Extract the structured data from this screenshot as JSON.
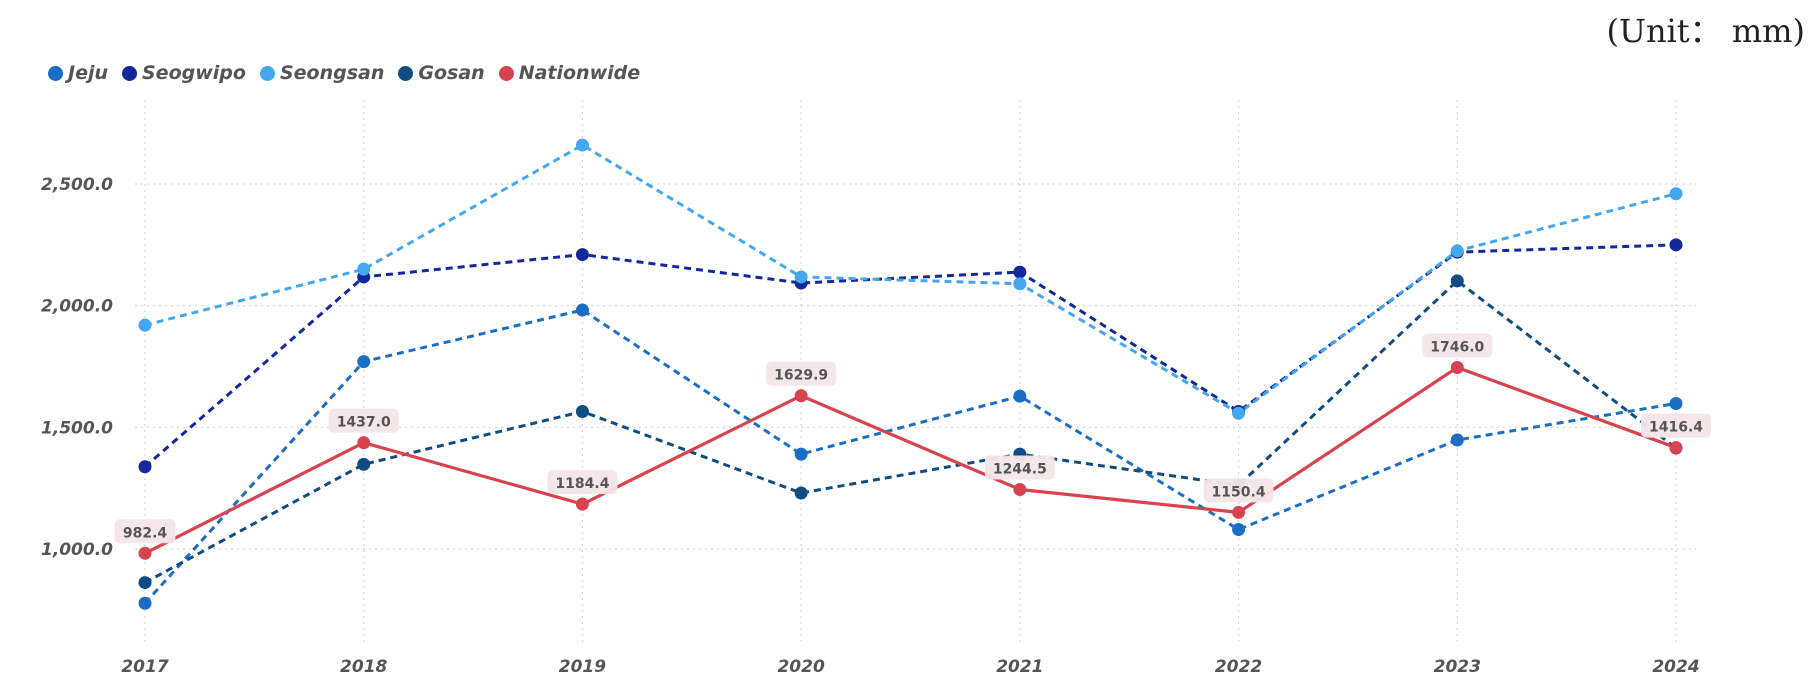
{
  "unit_label": "(Unit： mm)",
  "chart_data": {
    "type": "line",
    "categories": [
      "2017",
      "2018",
      "2019",
      "2020",
      "2021",
      "2022",
      "2023",
      "2024"
    ],
    "ylim": [
      700,
      2750
    ],
    "yticks": [
      1000,
      1500,
      2000,
      2500
    ],
    "ytick_labels": [
      "1,000.0",
      "1,500.0",
      "2,000.0",
      "2,500.0"
    ],
    "grid": true,
    "legend_position": "top-left",
    "series": [
      {
        "name": "Jeju",
        "color": "#1a6fc4",
        "dashed": true,
        "values": [
          777,
          1770,
          1982,
          1390,
          1628,
          1080,
          1448,
          1598
        ]
      },
      {
        "name": "Seogwipo",
        "color": "#14279b",
        "dashed": true,
        "values": [
          1338,
          2118,
          2210,
          2093,
          2138,
          1565,
          2220,
          2250
        ]
      },
      {
        "name": "Seongsan",
        "color": "#44a8f0",
        "dashed": true,
        "values": [
          1920,
          2150,
          2660,
          2118,
          2090,
          1558,
          2225,
          2460
        ]
      },
      {
        "name": "Gosan",
        "color": "#0f4c81",
        "dashed": true,
        "values": [
          862,
          1348,
          1565,
          1230,
          1390,
          1262,
          2102,
          1415
        ]
      },
      {
        "name": "Nationwide",
        "color": "#d9434f",
        "dashed": false,
        "values": [
          982.4,
          1437.0,
          1184.4,
          1629.9,
          1244.5,
          1150.4,
          1746.0,
          1416.4
        ],
        "data_labels": [
          "982.4",
          "1437.0",
          "1184.4",
          "1629.9",
          "1244.5",
          "1150.4",
          "1746.0",
          "1416.4"
        ]
      }
    ]
  }
}
